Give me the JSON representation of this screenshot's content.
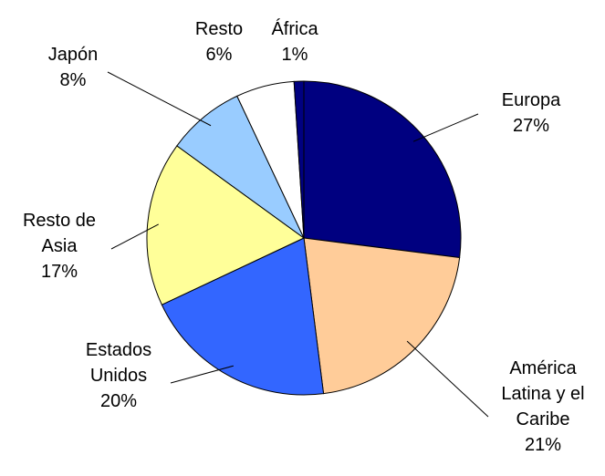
{
  "chart_data": {
    "type": "pie",
    "categories": [
      "Europa",
      "América Latina y el Caribe",
      "Estados Unidos",
      "Resto de Asia",
      "Japón",
      "Resto",
      "África"
    ],
    "values": [
      27,
      21,
      20,
      17,
      8,
      6,
      1
    ],
    "value_labels": [
      "27%",
      "21%",
      "20%",
      "17%",
      "8%",
      "6%",
      "1%"
    ],
    "colors": [
      "#000080",
      "#ffcc99",
      "#3366ff",
      "#ffff99",
      "#99ccff",
      "#ffffff",
      "#000080"
    ]
  }
}
